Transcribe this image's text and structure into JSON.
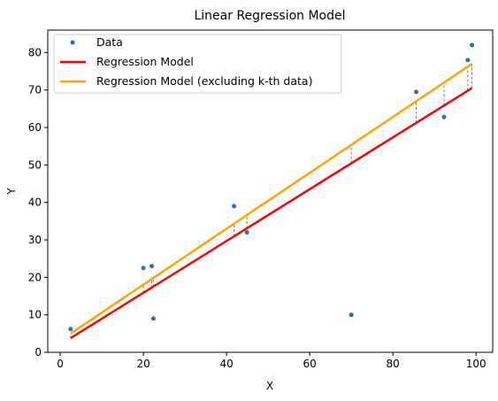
{
  "chart_data": {
    "type": "scatter",
    "title": "Linear Regression Model",
    "xlabel": "X",
    "ylabel": "Y",
    "xlim": [
      -3,
      104
    ],
    "ylim": [
      0,
      86
    ],
    "x_ticks": [
      0,
      20,
      40,
      60,
      80,
      100
    ],
    "y_ticks": [
      0,
      10,
      20,
      30,
      40,
      50,
      60,
      70,
      80
    ],
    "grid": false,
    "legend_position": "top-left",
    "series": [
      {
        "name": "Data",
        "kind": "scatter",
        "color": "#1f77b4",
        "points": [
          {
            "x": 2.5,
            "y": 6.2
          },
          {
            "x": 20.0,
            "y": 22.5
          },
          {
            "x": 22.0,
            "y": 23.0
          },
          {
            "x": 22.4,
            "y": 9.0
          },
          {
            "x": 41.8,
            "y": 39.0
          },
          {
            "x": 44.9,
            "y": 32.0
          },
          {
            "x": 70.0,
            "y": 10.0
          },
          {
            "x": 85.6,
            "y": 69.5
          },
          {
            "x": 92.3,
            "y": 62.8
          },
          {
            "x": 98.0,
            "y": 78.0
          },
          {
            "x": 99.0,
            "y": 82.0
          }
        ]
      },
      {
        "name": "Regression Model",
        "kind": "line",
        "color": "#ff0000",
        "points": [
          {
            "x": 2.5,
            "y": 3.8
          },
          {
            "x": 99.0,
            "y": 70.5
          }
        ]
      },
      {
        "name": "Regression Model (excluding k-th data)",
        "kind": "line",
        "color": "#ffa500",
        "points": [
          {
            "x": 2.5,
            "y": 5.0
          },
          {
            "x": 99.0,
            "y": 77.0
          }
        ]
      }
    ],
    "residual_guides": {
      "color": "#808080",
      "style": "dashed",
      "x": [
        2.5,
        20.0,
        22.0,
        22.4,
        41.8,
        44.9,
        70.0,
        85.6,
        92.3,
        98.0,
        99.0
      ]
    }
  }
}
